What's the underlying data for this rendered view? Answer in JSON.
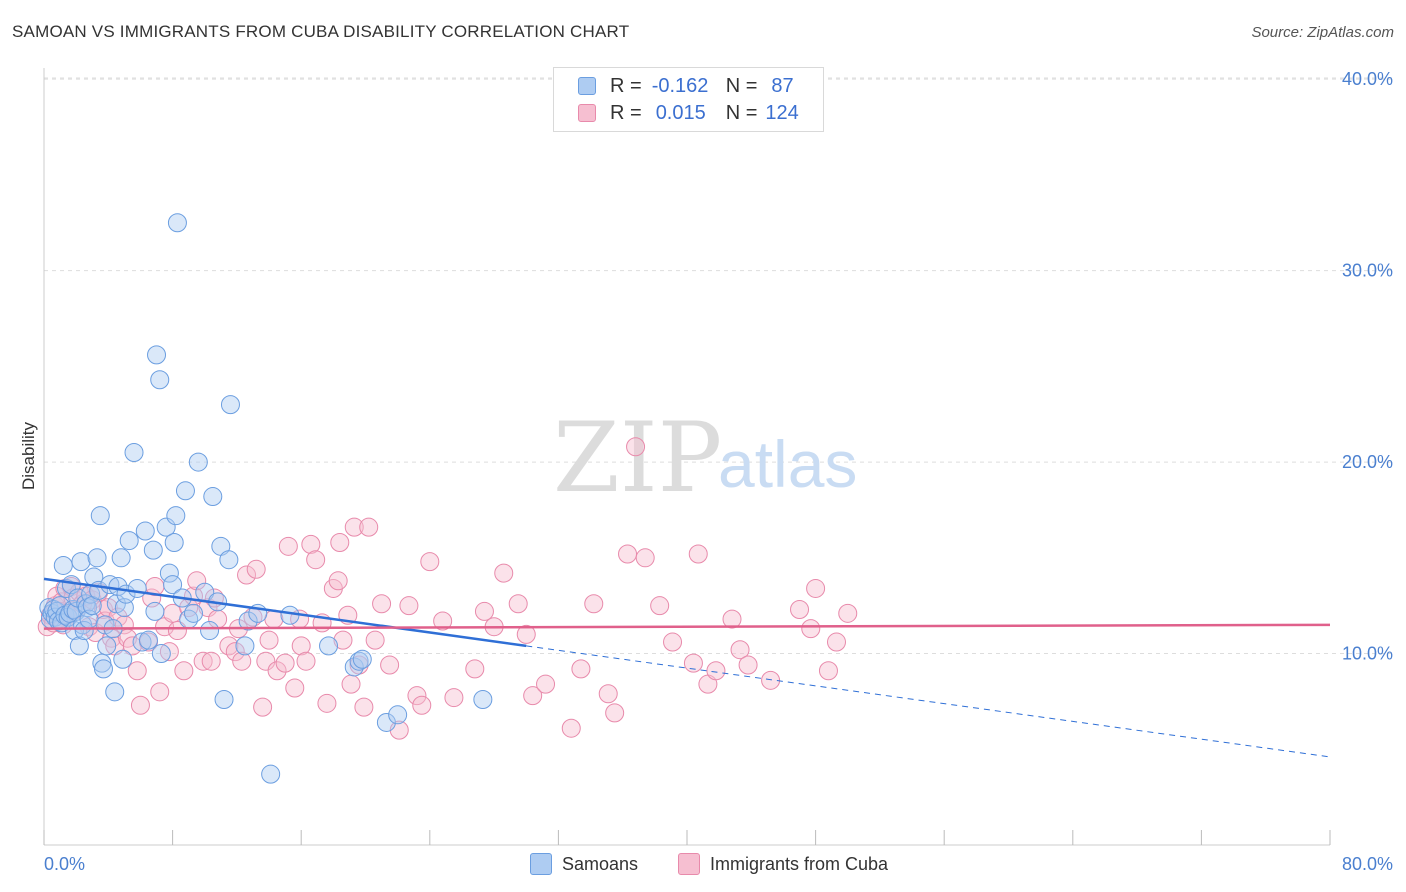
{
  "title": "SAMOAN VS IMMIGRANTS FROM CUBA DISABILITY CORRELATION CHART",
  "source": "Source: ZipAtlas.com",
  "watermark": {
    "zip": "ZIP",
    "atlas": "atlas"
  },
  "legend": {
    "rows": [
      {
        "r_label": "R =",
        "r_value": "-0.162",
        "n_label": "N =",
        "n_value": "87"
      },
      {
        "r_label": "R =",
        "r_value": "0.015",
        "n_label": "N =",
        "n_value": "124"
      }
    ]
  },
  "bottom_legend": {
    "samoans": "Samoans",
    "cuba": "Immigrants from Cuba"
  },
  "colors": {
    "samoan_fill": "#aeccf2",
    "samoan_stroke": "#6b9ee0",
    "samoan_line": "#2f6fd6",
    "cuba_fill": "#f6bfd1",
    "cuba_stroke": "#e88aab",
    "cuba_line": "#e0608b",
    "grid": "#dddddd",
    "axis_label": "#4a7fcf"
  },
  "chart_data": {
    "type": "scatter",
    "title": "SAMOAN VS IMMIGRANTS FROM CUBA DISABILITY CORRELATION CHART",
    "xlabel": "",
    "ylabel": "Disability",
    "xlim": [
      0,
      80
    ],
    "ylim": [
      0,
      41
    ],
    "x_tick_labels": [
      "0.0%",
      "80.0%"
    ],
    "y_ticks": [
      10,
      20,
      30,
      40
    ],
    "y_tick_labels": [
      "10.0%",
      "20.0%",
      "30.0%",
      "40.0%"
    ],
    "series": [
      {
        "name": "Samoans",
        "r": -0.162,
        "n": 87,
        "trend": {
          "x0": 0,
          "y0": 13.9,
          "x1": 30,
          "y1": 10.4,
          "dashed_to_x": 80,
          "dashed_to_y": 4.6
        },
        "points": [
          [
            0.3,
            12.4
          ],
          [
            0.4,
            11.8
          ],
          [
            0.5,
            12.1
          ],
          [
            0.6,
            12.3
          ],
          [
            0.7,
            11.9
          ],
          [
            0.8,
            12.2
          ],
          [
            0.9,
            11.7
          ],
          [
            1.0,
            12.5
          ],
          [
            1.1,
            11.6
          ],
          [
            1.2,
            14.6
          ],
          [
            1.3,
            12.0
          ],
          [
            1.4,
            13.4
          ],
          [
            1.5,
            11.9
          ],
          [
            1.6,
            12.1
          ],
          [
            1.7,
            13.6
          ],
          [
            1.8,
            12.3
          ],
          [
            1.9,
            11.2
          ],
          [
            2.0,
            12.2
          ],
          [
            2.1,
            12.9
          ],
          [
            2.2,
            10.4
          ],
          [
            2.3,
            14.8
          ],
          [
            2.4,
            11.5
          ],
          [
            2.5,
            11.2
          ],
          [
            2.6,
            12.6
          ],
          [
            2.7,
            12.4
          ],
          [
            2.8,
            11.8
          ],
          [
            2.9,
            13.1
          ],
          [
            3.0,
            12.5
          ],
          [
            3.1,
            14.0
          ],
          [
            3.3,
            15.0
          ],
          [
            3.4,
            13.3
          ],
          [
            3.5,
            17.2
          ],
          [
            3.6,
            9.5
          ],
          [
            3.7,
            9.2
          ],
          [
            3.8,
            11.5
          ],
          [
            3.9,
            10.4
          ],
          [
            4.1,
            13.6
          ],
          [
            4.3,
            11.3
          ],
          [
            4.4,
            8.0
          ],
          [
            4.5,
            12.6
          ],
          [
            4.6,
            13.5
          ],
          [
            4.8,
            15.0
          ],
          [
            4.9,
            9.7
          ],
          [
            5.0,
            12.4
          ],
          [
            5.1,
            13.1
          ],
          [
            5.3,
            15.9
          ],
          [
            5.6,
            20.5
          ],
          [
            5.8,
            13.4
          ],
          [
            6.1,
            10.6
          ],
          [
            6.3,
            16.4
          ],
          [
            6.5,
            10.7
          ],
          [
            6.8,
            15.4
          ],
          [
            6.9,
            12.2
          ],
          [
            7.0,
            25.6
          ],
          [
            7.2,
            24.3
          ],
          [
            7.3,
            10.0
          ],
          [
            7.6,
            16.6
          ],
          [
            7.8,
            14.2
          ],
          [
            8.0,
            13.6
          ],
          [
            8.1,
            15.8
          ],
          [
            8.2,
            17.2
          ],
          [
            8.3,
            32.5
          ],
          [
            8.6,
            12.9
          ],
          [
            8.8,
            18.5
          ],
          [
            9.0,
            11.8
          ],
          [
            9.3,
            12.1
          ],
          [
            9.6,
            20.0
          ],
          [
            10.0,
            13.2
          ],
          [
            10.3,
            11.2
          ],
          [
            10.5,
            18.2
          ],
          [
            10.8,
            12.7
          ],
          [
            11.0,
            15.6
          ],
          [
            11.2,
            7.6
          ],
          [
            11.5,
            14.9
          ],
          [
            11.6,
            23.0
          ],
          [
            12.5,
            10.4
          ],
          [
            12.7,
            11.7
          ],
          [
            13.3,
            12.1
          ],
          [
            14.1,
            3.7
          ],
          [
            15.3,
            12.0
          ],
          [
            17.7,
            10.4
          ],
          [
            19.3,
            9.3
          ],
          [
            19.6,
            9.6
          ],
          [
            19.8,
            9.7
          ],
          [
            21.3,
            6.4
          ],
          [
            22.0,
            6.8
          ],
          [
            27.3,
            7.6
          ]
        ]
      },
      {
        "name": "Immigrants from Cuba",
        "r": 0.015,
        "n": 124,
        "trend": {
          "x0": 0,
          "y0": 11.3,
          "x1": 80,
          "y1": 11.5
        },
        "points": [
          [
            0.2,
            11.4
          ],
          [
            0.4,
            12.0
          ],
          [
            0.6,
            11.6
          ],
          [
            0.7,
            12.5
          ],
          [
            0.8,
            13.0
          ],
          [
            0.9,
            11.8
          ],
          [
            1.0,
            12.2
          ],
          [
            1.1,
            12.7
          ],
          [
            1.2,
            11.5
          ],
          [
            1.3,
            13.4
          ],
          [
            1.4,
            12.1
          ],
          [
            1.5,
            11.9
          ],
          [
            1.7,
            13.5
          ],
          [
            1.8,
            12.9
          ],
          [
            2.0,
            12.3
          ],
          [
            2.2,
            13.2
          ],
          [
            2.4,
            12.6
          ],
          [
            2.6,
            13.0
          ],
          [
            2.8,
            11.4
          ],
          [
            3.0,
            12.8
          ],
          [
            3.2,
            11.1
          ],
          [
            3.4,
            13.2
          ],
          [
            3.7,
            12.3
          ],
          [
            3.8,
            11.7
          ],
          [
            4.0,
            12.4
          ],
          [
            4.2,
            10.8
          ],
          [
            4.4,
            10.4
          ],
          [
            4.6,
            11.9
          ],
          [
            5.0,
            11.5
          ],
          [
            5.2,
            10.8
          ],
          [
            5.5,
            10.4
          ],
          [
            5.8,
            9.1
          ],
          [
            6.0,
            7.3
          ],
          [
            6.5,
            10.6
          ],
          [
            6.7,
            12.9
          ],
          [
            6.9,
            13.5
          ],
          [
            7.2,
            8.0
          ],
          [
            7.5,
            11.4
          ],
          [
            7.8,
            10.1
          ],
          [
            8.0,
            12.1
          ],
          [
            8.3,
            11.2
          ],
          [
            8.7,
            9.1
          ],
          [
            9.0,
            12.4
          ],
          [
            9.3,
            13.0
          ],
          [
            9.5,
            13.8
          ],
          [
            9.9,
            9.6
          ],
          [
            10.2,
            12.4
          ],
          [
            10.4,
            9.6
          ],
          [
            10.6,
            12.9
          ],
          [
            10.8,
            11.8
          ],
          [
            11.5,
            10.4
          ],
          [
            11.9,
            10.1
          ],
          [
            12.1,
            11.3
          ],
          [
            12.3,
            9.6
          ],
          [
            12.6,
            14.1
          ],
          [
            13.0,
            11.9
          ],
          [
            13.2,
            14.4
          ],
          [
            13.6,
            7.2
          ],
          [
            13.8,
            9.6
          ],
          [
            14.0,
            10.7
          ],
          [
            14.3,
            11.8
          ],
          [
            14.5,
            9.1
          ],
          [
            15.0,
            9.5
          ],
          [
            15.2,
            15.6
          ],
          [
            15.6,
            8.2
          ],
          [
            15.9,
            11.8
          ],
          [
            16.0,
            10.4
          ],
          [
            16.3,
            9.6
          ],
          [
            16.6,
            15.7
          ],
          [
            16.9,
            14.9
          ],
          [
            17.3,
            11.6
          ],
          [
            17.6,
            7.4
          ],
          [
            18.0,
            13.4
          ],
          [
            18.3,
            13.8
          ],
          [
            18.4,
            15.8
          ],
          [
            18.6,
            10.7
          ],
          [
            18.9,
            12.0
          ],
          [
            19.1,
            8.4
          ],
          [
            19.3,
            16.6
          ],
          [
            19.6,
            9.4
          ],
          [
            19.9,
            7.2
          ],
          [
            20.2,
            16.6
          ],
          [
            20.6,
            10.7
          ],
          [
            21.0,
            12.6
          ],
          [
            21.5,
            9.4
          ],
          [
            22.1,
            6.0
          ],
          [
            22.7,
            12.5
          ],
          [
            23.2,
            7.8
          ],
          [
            23.5,
            7.3
          ],
          [
            24.0,
            14.8
          ],
          [
            24.8,
            11.7
          ],
          [
            25.5,
            7.7
          ],
          [
            26.8,
            9.2
          ],
          [
            27.4,
            12.2
          ],
          [
            28.0,
            11.4
          ],
          [
            28.6,
            14.2
          ],
          [
            29.5,
            12.6
          ],
          [
            30.0,
            11.0
          ],
          [
            30.4,
            7.8
          ],
          [
            31.2,
            8.4
          ],
          [
            32.8,
            6.1
          ],
          [
            33.4,
            9.2
          ],
          [
            34.2,
            12.6
          ],
          [
            35.1,
            7.9
          ],
          [
            35.5,
            6.9
          ],
          [
            36.3,
            15.2
          ],
          [
            36.8,
            20.8
          ],
          [
            37.4,
            15.0
          ],
          [
            38.3,
            12.5
          ],
          [
            39.1,
            10.6
          ],
          [
            40.4,
            9.5
          ],
          [
            40.7,
            15.2
          ],
          [
            41.3,
            8.4
          ],
          [
            41.8,
            9.1
          ],
          [
            42.8,
            11.8
          ],
          [
            43.3,
            10.2
          ],
          [
            43.8,
            9.4
          ],
          [
            45.2,
            8.6
          ],
          [
            47.0,
            12.3
          ],
          [
            47.7,
            11.3
          ],
          [
            48.0,
            13.4
          ],
          [
            48.8,
            9.1
          ],
          [
            49.3,
            10.6
          ],
          [
            50.0,
            12.1
          ]
        ]
      }
    ]
  }
}
